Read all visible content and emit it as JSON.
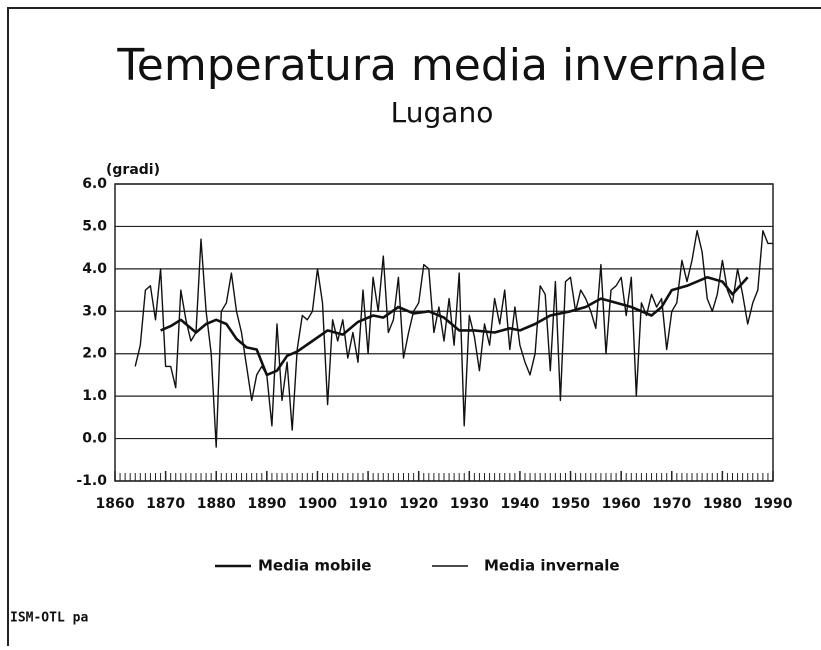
{
  "chart_data": {
    "type": "line",
    "title": "Temperatura media invernale",
    "subtitle": "Lugano",
    "y_label": "(gradi)",
    "source": "ISM-OTL pa",
    "xlim": [
      1860,
      1990
    ],
    "xticks": [
      1860,
      1870,
      1880,
      1890,
      1900,
      1910,
      1920,
      1930,
      1940,
      1950,
      1960,
      1970,
      1980,
      1990
    ],
    "ylim": [
      -1,
      6
    ],
    "yticks": [
      {
        "value": -1,
        "label": "-1.0"
      },
      {
        "value": 0,
        "label": "0.0"
      },
      {
        "value": 1,
        "label": "1.0"
      },
      {
        "value": 2,
        "label": "2.0"
      },
      {
        "value": 3,
        "label": "3.0"
      },
      {
        "value": 4,
        "label": "4.0"
      },
      {
        "value": 5,
        "label": "5.0"
      },
      {
        "value": 6,
        "label": "6.0"
      }
    ],
    "grid": true,
    "series": [
      {
        "name": "Media mobile",
        "color": "#111111",
        "x": [
          1869,
          1871,
          1873,
          1876,
          1878,
          1880,
          1882,
          1884,
          1886,
          1888,
          1890,
          1892,
          1894,
          1896,
          1899,
          1902,
          1905,
          1908,
          1911,
          1913,
          1916,
          1919,
          1922,
          1925,
          1928,
          1931,
          1935,
          1938,
          1940,
          1943,
          1946,
          1950,
          1953,
          1956,
          1959,
          1962,
          1966,
          1968,
          1970,
          1973,
          1977,
          1980,
          1982,
          1985
        ],
        "values": [
          2.55,
          2.65,
          2.8,
          2.5,
          2.7,
          2.8,
          2.7,
          2.35,
          2.15,
          2.1,
          1.5,
          1.6,
          1.95,
          2.05,
          2.3,
          2.55,
          2.45,
          2.75,
          2.9,
          2.85,
          3.1,
          2.95,
          3.0,
          2.85,
          2.55,
          2.55,
          2.5,
          2.6,
          2.55,
          2.7,
          2.9,
          3.0,
          3.1,
          3.3,
          3.2,
          3.1,
          2.9,
          3.1,
          3.5,
          3.6,
          3.8,
          3.7,
          3.4,
          3.8
        ]
      },
      {
        "name": "Media invernale",
        "color": "#111111",
        "x": [
          1864,
          1865,
          1866,
          1867,
          1868,
          1869,
          1870,
          1871,
          1872,
          1873,
          1874,
          1875,
          1876,
          1877,
          1878,
          1879,
          1880,
          1881,
          1882,
          1883,
          1884,
          1885,
          1886,
          1887,
          1888,
          1889,
          1890,
          1891,
          1892,
          1893,
          1894,
          1895,
          1896,
          1897,
          1898,
          1899,
          1900,
          1901,
          1902,
          1903,
          1904,
          1905,
          1906,
          1907,
          1908,
          1909,
          1910,
          1911,
          1912,
          1913,
          1914,
          1915,
          1916,
          1917,
          1918,
          1919,
          1920,
          1921,
          1922,
          1923,
          1924,
          1925,
          1926,
          1927,
          1928,
          1929,
          1930,
          1931,
          1932,
          1933,
          1934,
          1935,
          1936,
          1937,
          1938,
          1939,
          1940,
          1941,
          1942,
          1943,
          1944,
          1945,
          1946,
          1947,
          1948,
          1949,
          1950,
          1951,
          1952,
          1953,
          1954,
          1955,
          1956,
          1957,
          1958,
          1959,
          1960,
          1961,
          1962,
          1963,
          1964,
          1965,
          1966,
          1967,
          1968,
          1969,
          1970,
          1971,
          1972,
          1973,
          1974,
          1975,
          1976,
          1977,
          1978,
          1979,
          1980,
          1981,
          1982,
          1983,
          1984,
          1985,
          1986,
          1987,
          1988,
          1989,
          1990
        ],
        "values": [
          1.7,
          2.2,
          3.5,
          3.6,
          2.8,
          4.0,
          1.7,
          1.7,
          1.2,
          3.5,
          2.8,
          2.3,
          2.5,
          4.7,
          3.0,
          2.0,
          -0.2,
          3.0,
          3.2,
          3.9,
          3.0,
          2.5,
          1.7,
          0.9,
          1.5,
          1.7,
          1.5,
          0.3,
          2.7,
          0.9,
          1.8,
          0.2,
          2.1,
          2.9,
          2.8,
          3.0,
          4.0,
          3.2,
          0.8,
          2.8,
          2.3,
          2.8,
          1.9,
          2.5,
          1.8,
          3.5,
          2.0,
          3.8,
          3.0,
          4.3,
          2.5,
          2.8,
          3.8,
          1.9,
          2.5,
          3.0,
          3.2,
          4.1,
          4.0,
          2.5,
          3.1,
          2.3,
          3.3,
          2.2,
          3.9,
          0.3,
          2.9,
          2.4,
          1.6,
          2.7,
          2.2,
          3.3,
          2.7,
          3.5,
          2.1,
          3.1,
          2.2,
          1.8,
          1.5,
          2.0,
          3.6,
          3.4,
          1.6,
          3.7,
          0.9,
          3.7,
          3.8,
          3.0,
          3.5,
          3.3,
          3.0,
          2.6,
          4.1,
          2.0,
          3.5,
          3.6,
          3.8,
          2.9,
          3.8,
          1.0,
          3.2,
          2.9,
          3.4,
          3.1,
          3.3,
          2.1,
          3.0,
          3.2,
          4.2,
          3.7,
          4.2,
          4.9,
          4.4,
          3.3,
          3.0,
          3.4,
          4.2,
          3.5,
          3.2,
          4.0,
          3.4,
          2.7,
          3.2,
          3.5,
          4.9,
          4.6,
          4.6
        ]
      }
    ]
  }
}
